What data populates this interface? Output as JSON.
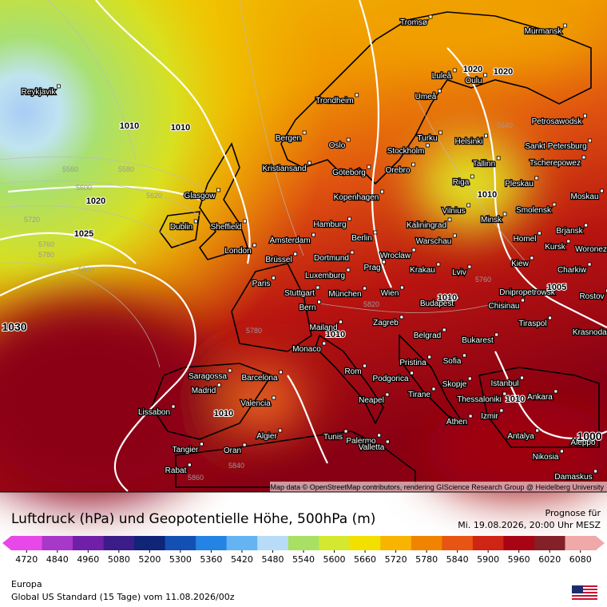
{
  "header": {
    "title": "Luftdruck (hPa) und Geopotentielle Höhe, 500hPa (m)",
    "forecast_label": "Prognose für",
    "forecast_time": "Mi. 19.08.2026, 20:00 Uhr MESZ"
  },
  "map": {
    "attribution": "Map data © OpenStreetMap contributors, rendering GIScience Research Group @ Heidelberg University",
    "cities": [
      "Reykjavik",
      "Tromsø",
      "Murmansk",
      "Luleå",
      "Oulu",
      "Umeå",
      "Trondheim",
      "Petrosawodsk",
      "Bergen",
      "Oslo",
      "Turku",
      "Helsinki",
      "Sankt Petersburg",
      "Stockholm",
      "Kristiansand",
      "Orebro",
      "Göteborg",
      "Tallinn",
      "Tscherepowez",
      "Glasgow",
      "Riga",
      "Pleskau",
      "Kopenhagen",
      "Moskau",
      "Dublin",
      "Sheffield",
      "Hamburg",
      "Vilnius",
      "Smolensk",
      "Minsk",
      "Kaliningrad",
      "Brjansk",
      "Amsterdam",
      "Berlin",
      "Warschau",
      "Homel",
      "Kursk",
      "Woronez",
      "London",
      "Brüssel",
      "Dortmund",
      "Wroclaw",
      "Kiew",
      "Prag",
      "Krakau",
      "Charkiw",
      "Lviv",
      "Luxemburg",
      "Paris",
      "Dnipropetrowsk",
      "Stuttgart",
      "München",
      "Wien",
      "Rostov",
      "Budapest",
      "Chisinau",
      "Bern",
      "Tiraspol",
      "Mailand",
      "Zagreb",
      "Krasnodar",
      "Belgrad",
      "Bukarest",
      "Monaco",
      "Pristina",
      "Sofia",
      "Rom",
      "Saragossa",
      "Barcelona",
      "Podgorica",
      "Istanbul",
      "Skopje",
      "Madrid",
      "Tirane",
      "Ankara",
      "Thessaloniki",
      "Valencia",
      "Neapel",
      "Lissabon",
      "Izmir",
      "Athen",
      "Algier",
      "Tunis",
      "Antalya",
      "Palermo",
      "Aleppo",
      "Valletta",
      "Tangier",
      "Oran",
      "Nikosia",
      "Rabat",
      "Damaskus"
    ],
    "pressure_labels": [
      1010,
      1010,
      1020,
      1025,
      1030,
      1020,
      1020,
      1010,
      1010,
      1010,
      1010,
      1005,
      1000,
      1010
    ],
    "height_labels": [
      5560,
      5580,
      5600,
      5620,
      5720,
      5760,
      5780,
      5800,
      5640,
      5760,
      5820,
      5780,
      5840,
      5860
    ]
  },
  "legend": {
    "ticks": [
      4720,
      4840,
      4960,
      5080,
      5200,
      5300,
      5360,
      5420,
      5480,
      5540,
      5600,
      5660,
      5720,
      5780,
      5840,
      5900,
      5960,
      6020,
      6080
    ],
    "colors": [
      "#e848e8",
      "#a838c8",
      "#7020a8",
      "#3c1c88",
      "#102478",
      "#1450b4",
      "#2484e4",
      "#64b4f4",
      "#b8dcf8",
      "#a8e064",
      "#d4e830",
      "#f2e000",
      "#f8b400",
      "#f08400",
      "#e85414",
      "#d02414",
      "#a80414",
      "#842028",
      "#f0a8a8"
    ]
  },
  "footer": {
    "region": "Europa",
    "model": "Global US Standard (15 Tage)  vom  11.08.2026/00z"
  }
}
